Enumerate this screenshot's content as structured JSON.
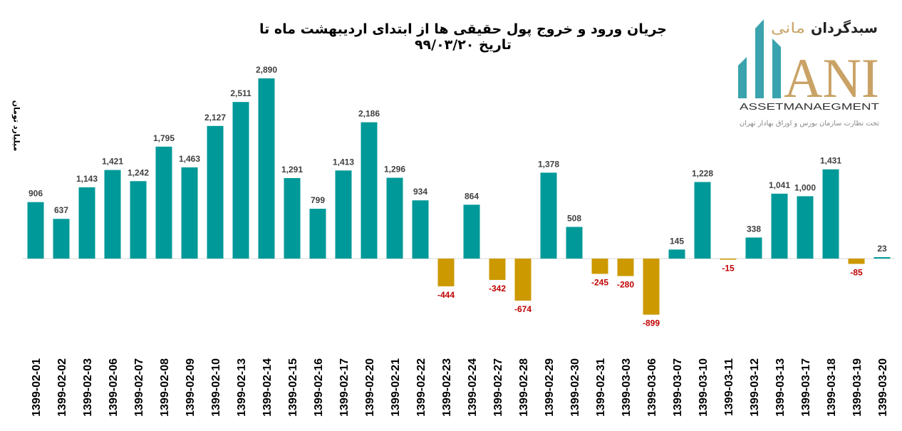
{
  "chart_data": {
    "type": "bar",
    "title": "جریان ورود و خروج پول حقیقی ها از ابتدای اردیبهشت ماه تا تاریخ ۹۹/۰۳/۲۰",
    "xlabel": "",
    "ylabel": "میلیارد تومان",
    "ylim": [
      -1000,
      2900
    ],
    "grid": false,
    "legend": "none",
    "colors": {
      "positive": "#009999",
      "negative": "#CC9900",
      "positive_label": "#404040",
      "negative_label": "#C00000"
    },
    "categories": [
      "1399-02-01",
      "1399-02-02",
      "1399-02-03",
      "1399-02-06",
      "1399-02-07",
      "1399-02-08",
      "1399-02-09",
      "1399-02-10",
      "1399-02-13",
      "1399-02-14",
      "1399-02-15",
      "1399-02-16",
      "1399-02-17",
      "1399-02-20",
      "1399-02-21",
      "1399-02-22",
      "1399-02-23",
      "1399-02-24",
      "1399-02-27",
      "1399-02-28",
      "1399-02-29",
      "1399-02-30",
      "1399-02-31",
      "1399-03-03",
      "1399-03-06",
      "1399-03-07",
      "1399-03-10",
      "1399-03-11",
      "1399-03-12",
      "1399-03-13",
      "1399-03-17",
      "1399-03-18",
      "1399-03-19",
      "1399-03-20"
    ],
    "values": [
      906,
      637,
      1143,
      1421,
      1242,
      1795,
      1463,
      2127,
      2511,
      2890,
      1291,
      799,
      1413,
      2186,
      1296,
      934,
      -444,
      864,
      -342,
      -674,
      1378,
      508,
      -245,
      -280,
      -899,
      145,
      1228,
      -15,
      338,
      1041,
      1000,
      1431,
      -85,
      23
    ]
  },
  "logo": {
    "brand_fa": "سبدگردان مانی",
    "brand_en": "ANI",
    "subtitle_en": "ASSETMANAEGMENT",
    "tagline_fa": "تحت نظارت سازمان بورس و اوراق بهادار تهران"
  }
}
